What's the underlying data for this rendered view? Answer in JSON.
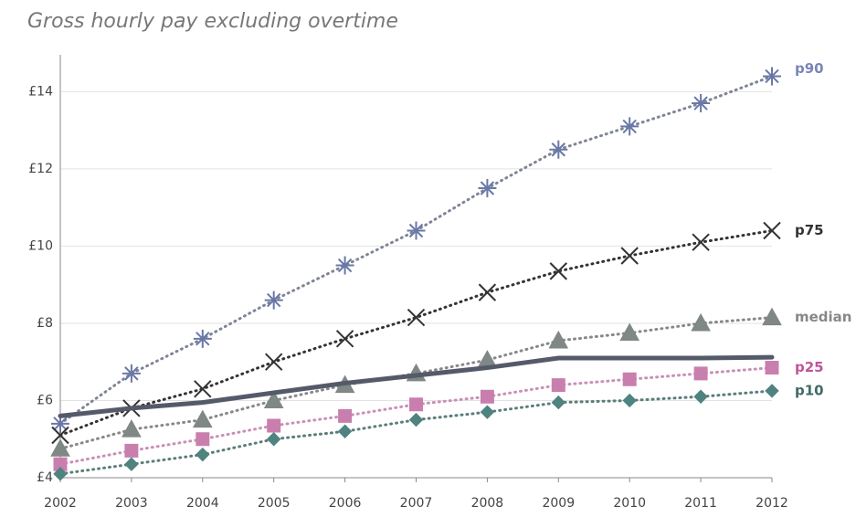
{
  "chart_data": {
    "type": "line",
    "title": "Gross hourly pay excluding overtime",
    "x": [
      2002,
      2003,
      2004,
      2005,
      2006,
      2007,
      2008,
      2009,
      2010,
      2011,
      2012
    ],
    "xlim": [
      2002,
      2012
    ],
    "xticks": [
      2002,
      2003,
      2004,
      2005,
      2006,
      2007,
      2008,
      2009,
      2010,
      2011,
      2012
    ],
    "ylim": [
      4,
      14.6
    ],
    "yticks": [
      {
        "value": 4,
        "label": "£4"
      },
      {
        "value": 6,
        "label": "£6"
      },
      {
        "value": 8,
        "label": "£8"
      },
      {
        "value": 10,
        "label": "£10"
      },
      {
        "value": 12,
        "label": "£12"
      },
      {
        "value": 14,
        "label": "£14"
      }
    ],
    "grid": true,
    "series": [
      {
        "name": "p90",
        "color": "#6a78a8",
        "line_color": "#7f8596",
        "marker": "asterisk",
        "dash": "dotted",
        "label_color": "#7a86b8",
        "values": [
          5.4,
          6.7,
          7.6,
          8.6,
          9.5,
          10.4,
          11.5,
          12.5,
          13.1,
          13.7,
          14.4
        ]
      },
      {
        "name": "p75",
        "color": "#333333",
        "line_color": "#333333",
        "marker": "x",
        "dash": "dotted",
        "label_color": "#333333",
        "values": [
          5.1,
          5.8,
          6.3,
          7.0,
          7.6,
          8.15,
          8.8,
          9.35,
          9.75,
          10.1,
          10.4
        ]
      },
      {
        "name": "median",
        "color": "#7f8884",
        "line_color": "#888888",
        "marker": "triangle",
        "dash": "dotted",
        "label_color": "#888888",
        "values": [
          4.75,
          5.25,
          5.5,
          6.0,
          6.4,
          6.7,
          7.05,
          7.55,
          7.75,
          8.0,
          8.15
        ]
      },
      {
        "color": "#555a6a",
        "line_color": "#555a6a",
        "marker": "none",
        "dash": "solid",
        "values": [
          5.6,
          5.8,
          5.95,
          6.2,
          6.45,
          6.65,
          6.85,
          7.1,
          7.1,
          7.1,
          7.12
        ]
      },
      {
        "name": "p25",
        "color": "#c97fae",
        "line_color": "#c98fb5",
        "marker": "square",
        "dash": "dotted",
        "label_color": "#c0559a",
        "values": [
          4.35,
          4.7,
          5.0,
          5.35,
          5.6,
          5.9,
          6.1,
          6.4,
          6.55,
          6.7,
          6.85
        ]
      },
      {
        "name": "p10",
        "color": "#4f8380",
        "line_color": "#5a7d7a",
        "marker": "diamond",
        "dash": "dotted",
        "label_color": "#3f6b66",
        "values": [
          4.1,
          4.35,
          4.6,
          5.0,
          5.2,
          5.5,
          5.7,
          5.95,
          6.0,
          6.1,
          6.25
        ]
      }
    ]
  }
}
